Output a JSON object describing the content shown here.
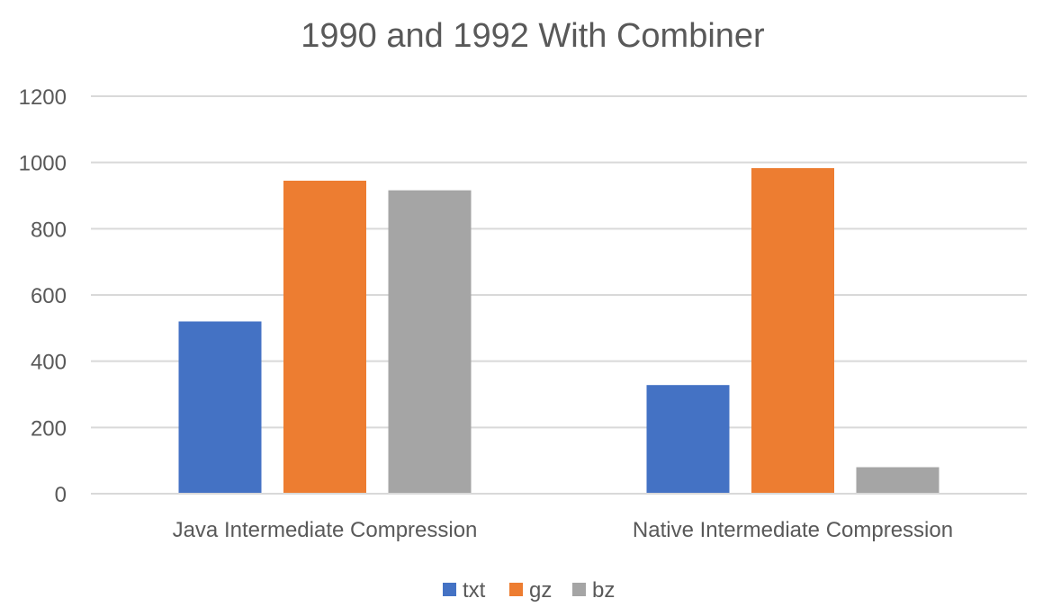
{
  "chart_data": {
    "type": "bar",
    "title": "1990 and 1992 With Combiner",
    "categories": [
      "Java Intermediate Compression",
      "Native Intermediate Compression"
    ],
    "series": [
      {
        "name": "txt",
        "values": [
          520,
          328
        ],
        "color": "#4472c4"
      },
      {
        "name": "gz",
        "values": [
          945,
          983
        ],
        "color": "#ed7d31"
      },
      {
        "name": "bz",
        "values": [
          916,
          80
        ],
        "color": "#a5a5a5"
      }
    ],
    "ylim": [
      0,
      1200
    ],
    "yticks": [
      "0",
      "200",
      "400",
      "600",
      "800",
      "1000",
      "1200"
    ],
    "grid": true,
    "legend_position": "bottom"
  }
}
